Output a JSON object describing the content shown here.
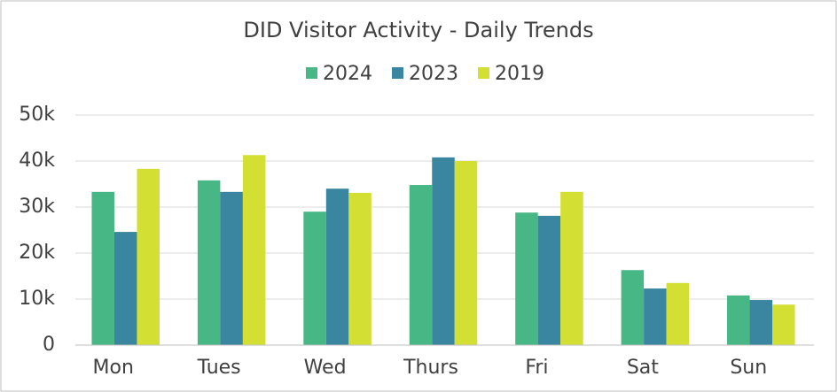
{
  "chart_data": {
    "type": "bar",
    "title": "DID Visitor Activity - Daily Trends",
    "categories": [
      "Mon",
      "Tues",
      "Wed",
      "Thurs",
      "Fri",
      "Sat",
      "Sun"
    ],
    "series": [
      {
        "name": "2024",
        "color": "#47b785",
        "values": [
          33300,
          35800,
          29000,
          34800,
          28800,
          16300,
          10800
        ]
      },
      {
        "name": "2023",
        "color": "#3a86a1",
        "values": [
          24600,
          33300,
          34000,
          40800,
          28100,
          12300,
          9800
        ]
      },
      {
        "name": "2019",
        "color": "#d4df33",
        "values": [
          38300,
          41300,
          33100,
          40000,
          33300,
          13500,
          8800
        ]
      }
    ],
    "ylim": [
      0,
      50000
    ],
    "yticks": [
      0,
      {
        "value": 10000,
        "label": "10k"
      },
      {
        "value": 20000,
        "label": "20k"
      },
      {
        "value": 30000,
        "label": "30k"
      },
      {
        "value": 40000,
        "label": "40k"
      },
      {
        "value": 50000,
        "label": "50k"
      }
    ],
    "grid": true,
    "legend": "top"
  }
}
